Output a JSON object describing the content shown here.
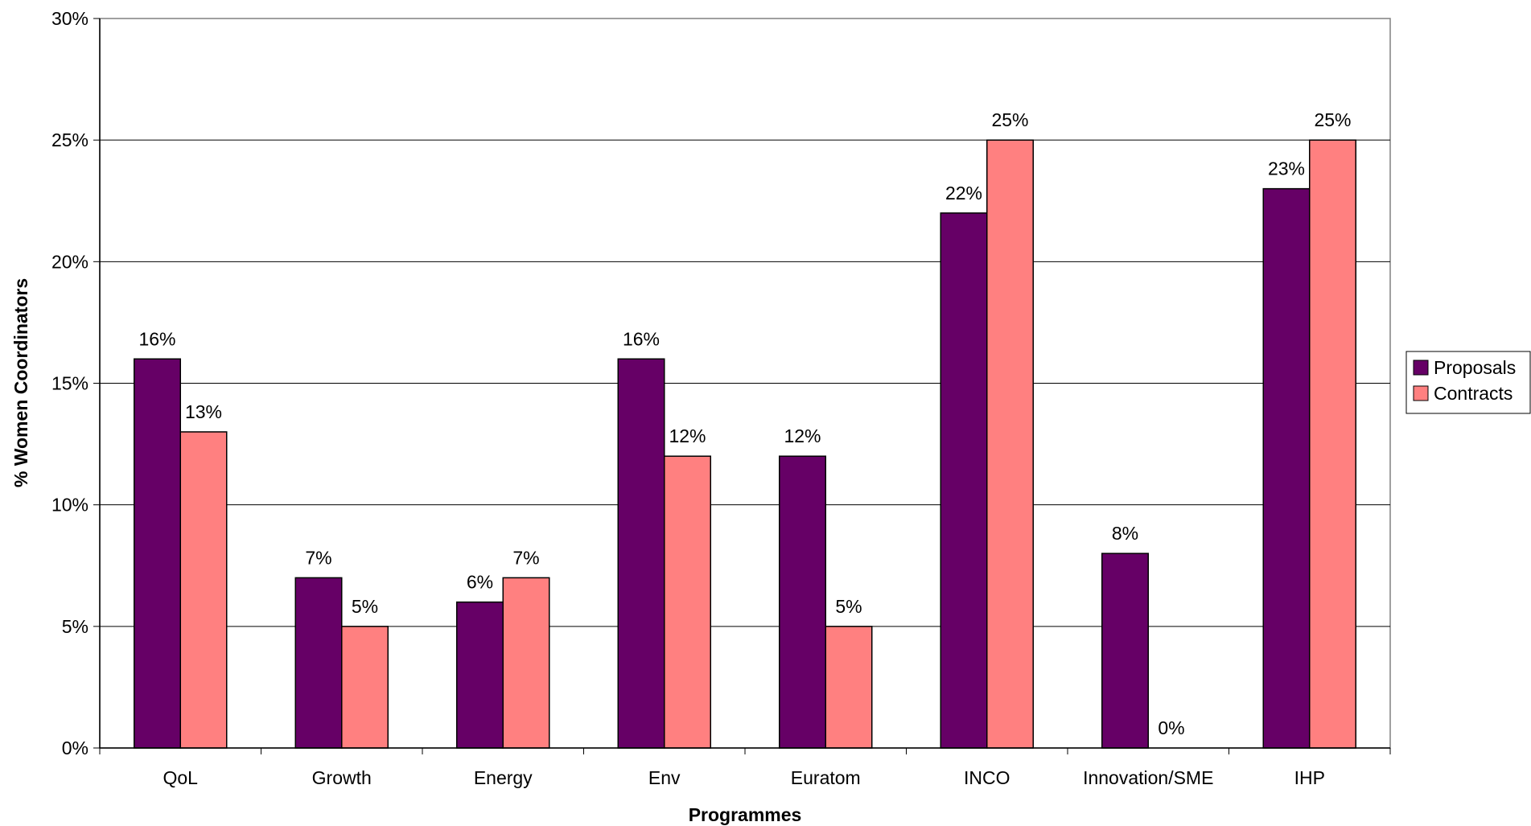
{
  "chart_data": {
    "type": "bar",
    "title": "",
    "xlabel": "Programmes",
    "ylabel": "% Women Coordinators",
    "categories": [
      "QoL",
      "Growth",
      "Energy",
      "Env",
      "Euratom",
      "INCO",
      "Innovation/SME",
      "IHP"
    ],
    "series": [
      {
        "name": "Proposals",
        "color": "#660066",
        "values": [
          16,
          7,
          6,
          16,
          12,
          22,
          8,
          23
        ]
      },
      {
        "name": "Contracts",
        "color": "#FF8080",
        "values": [
          13,
          5,
          7,
          12,
          5,
          25,
          0,
          25
        ]
      }
    ],
    "ylim": [
      0,
      30
    ],
    "yticks": [
      0,
      5,
      10,
      15,
      20,
      25,
      30
    ],
    "ytick_labels": [
      "0%",
      "5%",
      "10%",
      "15%",
      "20%",
      "25%",
      "30%"
    ],
    "data_labels": [
      [
        "16%",
        "7%",
        "6%",
        "16%",
        "12%",
        "22%",
        "8%",
        "23%"
      ],
      [
        "13%",
        "5%",
        "7%",
        "12%",
        "5%",
        "25%",
        "0%",
        "25%"
      ]
    ],
    "grid": true,
    "legend_position": "right"
  }
}
